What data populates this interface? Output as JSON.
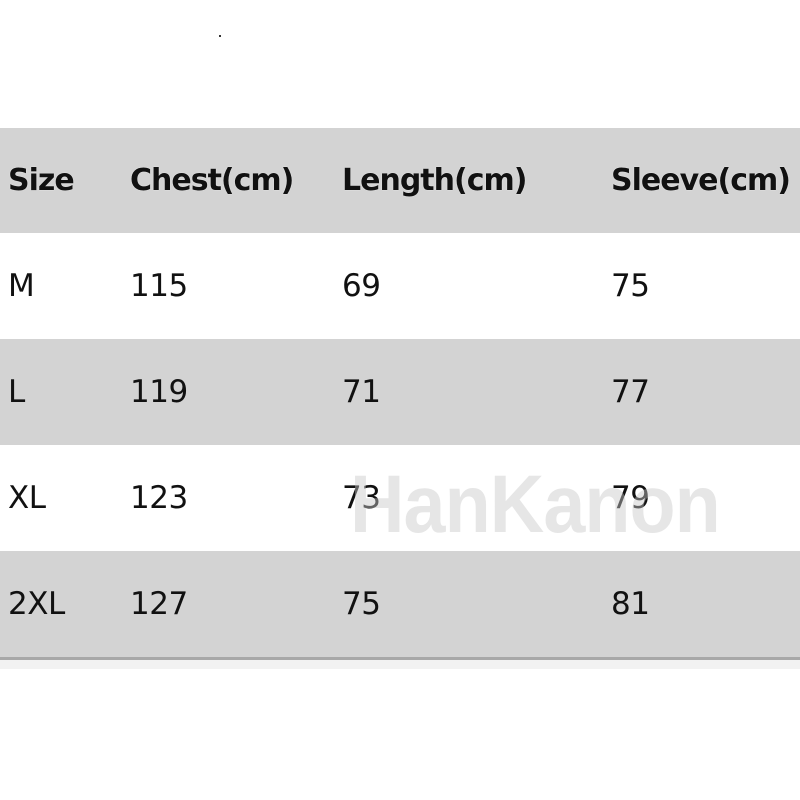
{
  "size_chart": {
    "headers": [
      "Size",
      "Chest(cm)",
      "Length(cm)",
      "Sleeve(cm)"
    ],
    "rows": [
      [
        "M",
        "115",
        "69",
        "75"
      ],
      [
        "L",
        "119",
        "71",
        "77"
      ],
      [
        "XL",
        "123",
        "73",
        "79"
      ],
      [
        "2XL",
        "127",
        "75",
        "81"
      ]
    ]
  },
  "watermark": "HanKanon",
  "colors": {
    "stripe": "#d3d3d3",
    "background": "#ffffff",
    "text": "#111111"
  }
}
